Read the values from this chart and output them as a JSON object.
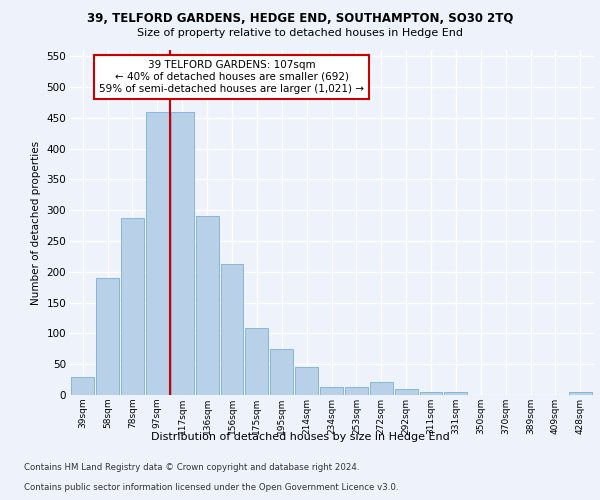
{
  "title_line1": "39, TELFORD GARDENS, HEDGE END, SOUTHAMPTON, SO30 2TQ",
  "title_line2": "Size of property relative to detached houses in Hedge End",
  "xlabel": "Distribution of detached houses by size in Hedge End",
  "ylabel": "Number of detached properties",
  "bar_labels": [
    "39sqm",
    "58sqm",
    "78sqm",
    "97sqm",
    "117sqm",
    "136sqm",
    "156sqm",
    "175sqm",
    "195sqm",
    "214sqm",
    "234sqm",
    "253sqm",
    "272sqm",
    "292sqm",
    "311sqm",
    "331sqm",
    "350sqm",
    "370sqm",
    "389sqm",
    "409sqm",
    "428sqm"
  ],
  "bar_values": [
    30,
    190,
    287,
    460,
    460,
    290,
    213,
    108,
    74,
    46,
    13,
    13,
    21,
    10,
    5,
    5,
    0,
    0,
    0,
    0,
    5
  ],
  "bar_color": "#b8d0e8",
  "bar_edgecolor": "#7aafd4",
  "annotation_box_text": "39 TELFORD GARDENS: 107sqm\n← 40% of detached houses are smaller (692)\n59% of semi-detached houses are larger (1,021) →",
  "annotation_box_color": "#ffffff",
  "annotation_box_edgecolor": "#cc0000",
  "vline_color": "#cc0000",
  "vline_x_index": 3.5,
  "ylim": [
    0,
    560
  ],
  "yticks": [
    0,
    50,
    100,
    150,
    200,
    250,
    300,
    350,
    400,
    450,
    500,
    550
  ],
  "background_color": "#eef2fa",
  "grid_color": "#ffffff",
  "footer_line1": "Contains HM Land Registry data © Crown copyright and database right 2024.",
  "footer_line2": "Contains public sector information licensed under the Open Government Licence v3.0."
}
